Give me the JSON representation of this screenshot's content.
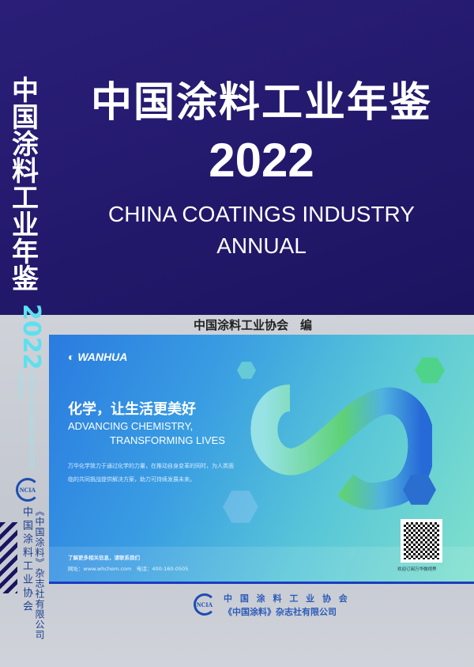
{
  "cover": {
    "title_cn": "中国涂料工业年鉴",
    "year": "2022",
    "title_en_line1": "CHINA COATINGS INDUSTRY",
    "title_en_line2": "ANNUAL",
    "editor": "中国涂料工业协会　编"
  },
  "spine": {
    "title_cn": "中国涂料工业年鉴",
    "year": "2022",
    "title_en_line1": "CHINA COATINGS INDUSTRY",
    "title_en_line2": "ANNUAL",
    "logo_text": "NCIA",
    "publisher_1": "中国涂料工业协会",
    "publisher_2": "《中国涂料》杂志社有限公司"
  },
  "ad": {
    "brand": "WANHUA",
    "slogan_cn": "化学，让生活更美好",
    "slogan_en_line1": "ADVANCING CHEMISTRY,",
    "slogan_en_line2": "TRANSFORMING LIVES",
    "body": "万华化学致力于通过化学的力量，在推动自身变革的同时，为人类面临的共同挑战提供解决方案，助力可持续发展未来。",
    "contact_title": "了解更多相关信息，请联系我们",
    "contact_line": "网址：www.whchem.com　电话：400-160-0505",
    "qr_caption": "欢迎订阅万华微视界",
    "colors": {
      "blue": "#2a7be0",
      "teal": "#7fe0cc",
      "green": "#5fd36a"
    }
  },
  "footer": {
    "logo_text": "NCIA",
    "publisher_1": "中 国 涂 料 工 业 协 会",
    "publisher_2": "《中国涂料》杂志社有限公司"
  }
}
